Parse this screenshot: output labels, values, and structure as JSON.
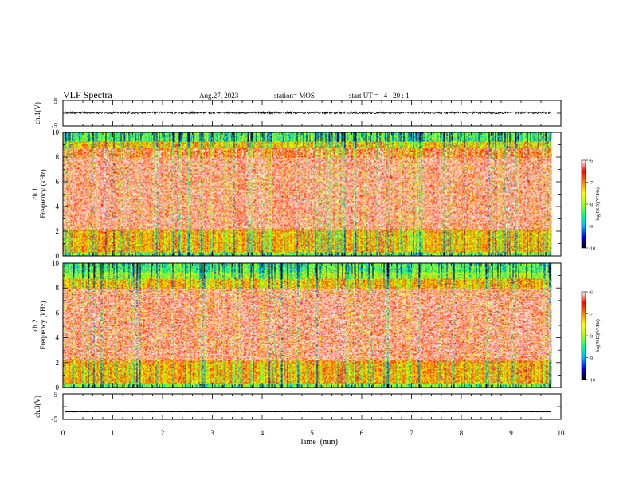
{
  "header": {
    "title": "VLF Spectra",
    "date": "Aug.27, 2023",
    "station": "station= MOS",
    "start_ut": "start UT =   4 : 20 : 1"
  },
  "chart_data": [
    {
      "type": "line",
      "name": "ch1-waveform",
      "ylabel": "ch.1(V)",
      "yticks": [
        "5",
        "-5"
      ],
      "ylim": [
        -5,
        5
      ],
      "xlim": [
        0,
        10
      ],
      "level": 0.2
    },
    {
      "type": "heatmap",
      "name": "ch1-spectrogram",
      "ylabel": "ch.1\nFrequency (kHz)",
      "ylabel_line1": "ch.1",
      "ylabel_line2": "Frequency (kHz)",
      "ylim": [
        0,
        10
      ],
      "yticks": [
        "0",
        "2",
        "4",
        "6",
        "8",
        "10"
      ],
      "xlim": [
        0,
        9.8
      ],
      "colorbar": {
        "label": "log(PSD)(V²/Hz)",
        "range": [
          -10,
          -6
        ],
        "ticks": [
          "-6",
          "-7",
          "-8",
          "-9",
          "-10"
        ]
      }
    },
    {
      "type": "heatmap",
      "name": "ch2-spectrogram",
      "ylabel_line1": "ch.2",
      "ylabel_line2": "Frequency (kHz)",
      "ylim": [
        0,
        10
      ],
      "yticks": [
        "0",
        "2",
        "4",
        "6",
        "8",
        "10"
      ],
      "xlim": [
        0,
        9.8
      ],
      "colorbar": {
        "label": "log(PSD)(V²/Hz)",
        "range": [
          -10,
          -6
        ],
        "ticks": [
          "-6",
          "-7",
          "-8",
          "-9",
          "-10"
        ]
      }
    },
    {
      "type": "line",
      "name": "ch3-waveform",
      "ylabel": "ch.3(V)",
      "yticks": [
        "5",
        "-5"
      ],
      "ylim": [
        -5,
        5
      ],
      "xlim": [
        0,
        10
      ],
      "level": -2
    }
  ],
  "xaxis": {
    "label": "Time  (min)",
    "ticks": [
      "0",
      "1",
      "2",
      "3",
      "4",
      "5",
      "6",
      "7",
      "8",
      "9",
      "10"
    ],
    "range": [
      0,
      10
    ]
  },
  "colors": {
    "colormap": [
      "#000000",
      "#0000ff",
      "#00b4ff",
      "#00ff80",
      "#a0ff00",
      "#ffff00",
      "#ff8000",
      "#ff0000",
      "#ffffff"
    ]
  }
}
